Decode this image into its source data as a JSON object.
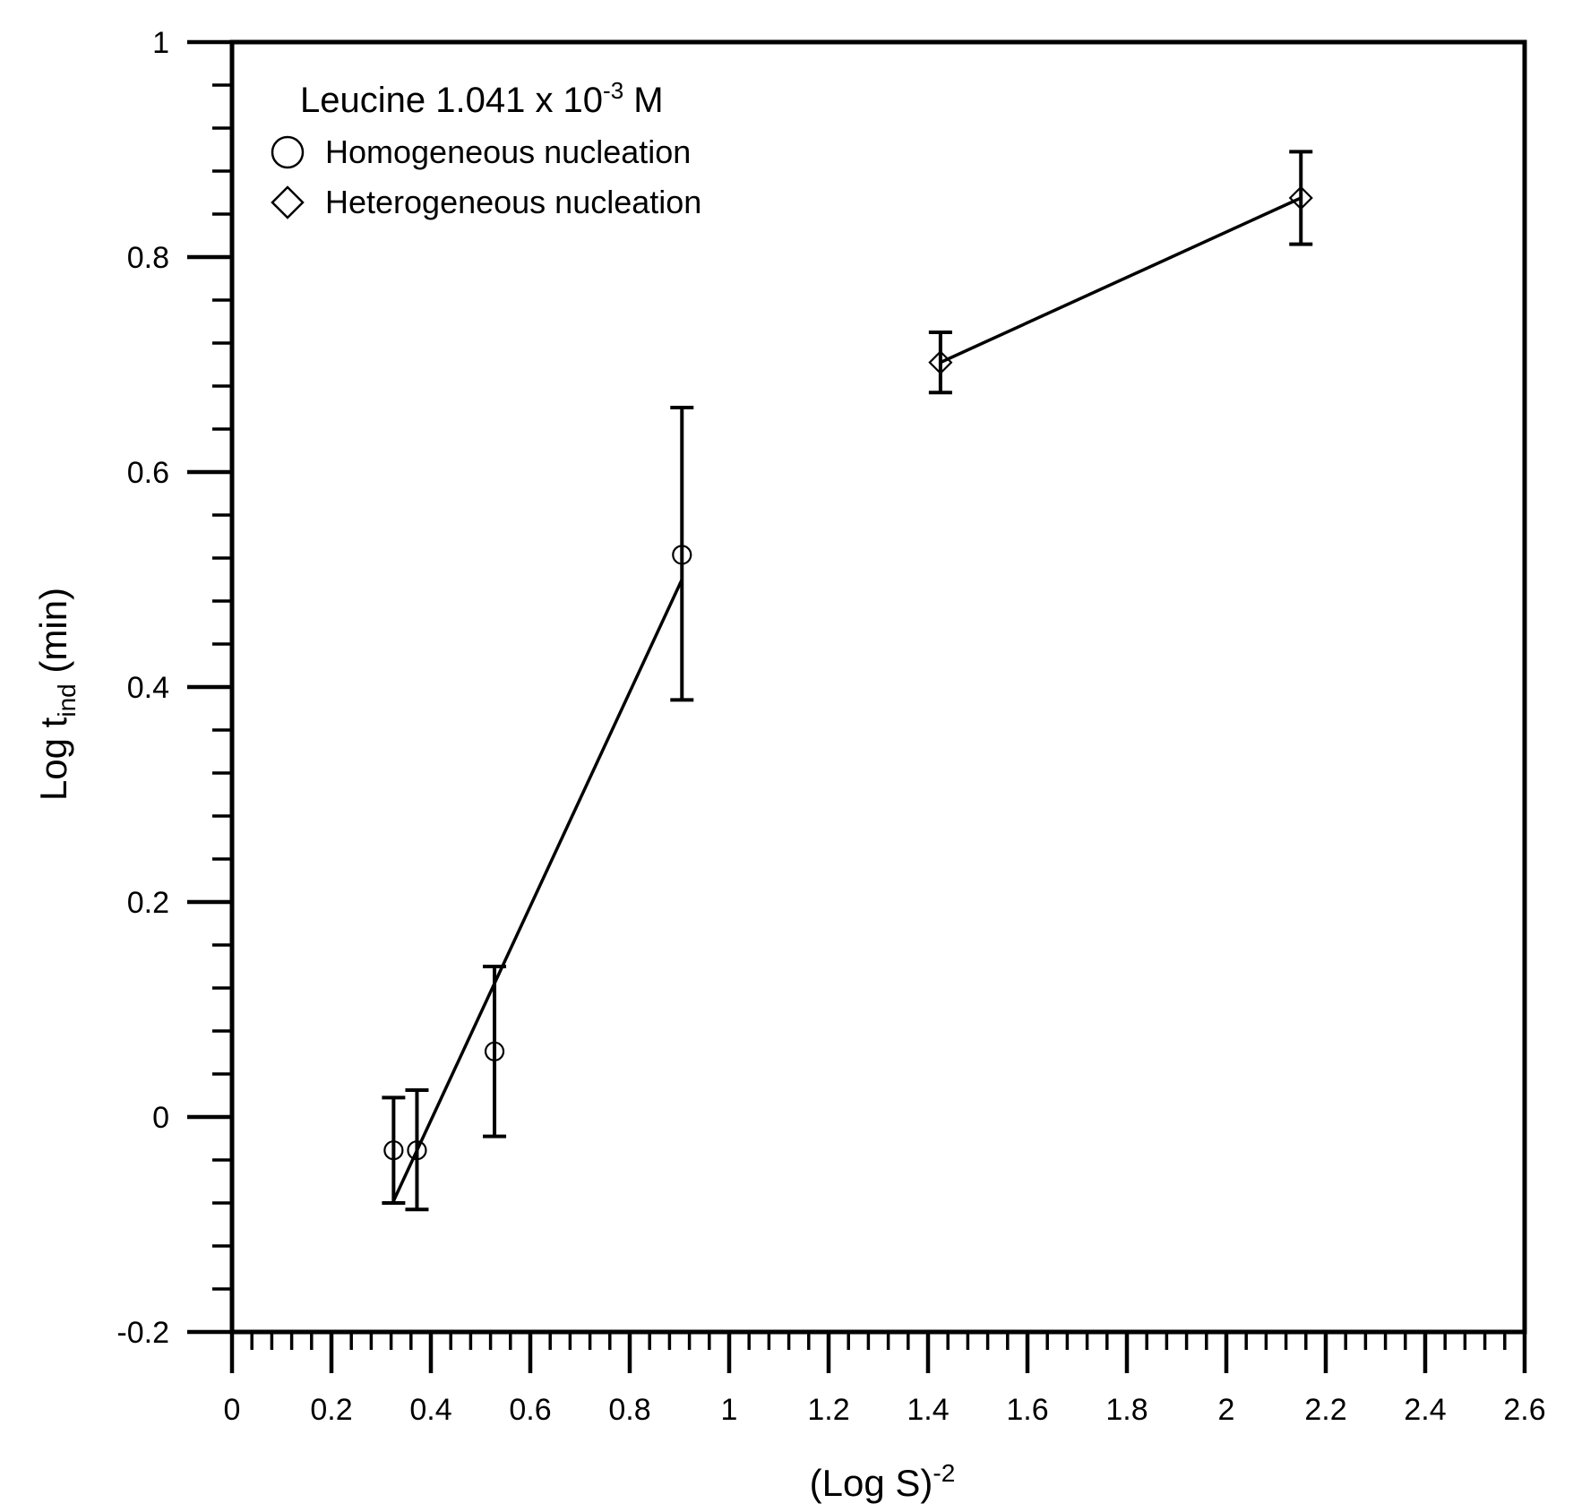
{
  "chart_data": {
    "type": "scatter",
    "title": "",
    "legend": {
      "placement": "top-left",
      "title": {
        "main": "Leucine 1.041 x 10",
        "superscript": "-3",
        "suffix": " M"
      },
      "entries": [
        {
          "marker": "circle",
          "label": "Homogeneous nucleation"
        },
        {
          "marker": "diamond",
          "label": "Heterogeneous nucleation"
        }
      ]
    },
    "xlabel": {
      "main": "(Log S)",
      "superscript": "-2"
    },
    "ylabel": {
      "main": "Log t",
      "subscript": "ind",
      "suffix": " (min)"
    },
    "xlim": [
      0,
      2.6
    ],
    "ylim": [
      -0.2,
      1
    ],
    "x_ticks": [
      0,
      0.2,
      0.4,
      0.6,
      0.8,
      1,
      1.2,
      1.4,
      1.6,
      1.8,
      2,
      2.2,
      2.4,
      2.6
    ],
    "x_tick_labels": [
      "0",
      "0.2",
      "0.4",
      "0.6",
      "0.8",
      "1",
      "1.2",
      "1.4",
      "1.6",
      "1.8",
      "2",
      "2.2",
      "2.4",
      "2.6"
    ],
    "y_ticks": [
      -0.2,
      0,
      0.2,
      0.4,
      0.6,
      0.8,
      1
    ],
    "y_tick_labels": [
      "-0.2",
      "0",
      "0.2",
      "0.4",
      "0.6",
      "0.8",
      "1"
    ],
    "x_minor_step": 0.04,
    "y_minor_step": 0.04,
    "grid": false,
    "series": [
      {
        "name": "Homogeneous nucleation",
        "marker": "circle",
        "points": [
          {
            "x": 0.325,
            "y": -0.031,
            "err_low": -0.08,
            "err_high": 0.018
          },
          {
            "x": 0.372,
            "y": -0.031,
            "err_low": -0.086,
            "err_high": 0.025
          },
          {
            "x": 0.528,
            "y": 0.061,
            "err_low": -0.018,
            "err_high": 0.14
          },
          {
            "x": 0.905,
            "y": 0.523,
            "err_low": 0.388,
            "err_high": 0.66
          }
        ],
        "fit_line": [
          {
            "x": 0.325,
            "y": -0.078
          },
          {
            "x": 0.905,
            "y": 0.5
          }
        ]
      },
      {
        "name": "Heterogeneous nucleation",
        "marker": "diamond",
        "points": [
          {
            "x": 1.425,
            "y": 0.702,
            "err_low": 0.674,
            "err_high": 0.73
          },
          {
            "x": 2.15,
            "y": 0.855,
            "err_low": 0.812,
            "err_high": 0.898
          }
        ],
        "fit_line": [
          {
            "x": 1.425,
            "y": 0.702
          },
          {
            "x": 2.15,
            "y": 0.855
          }
        ]
      }
    ]
  }
}
